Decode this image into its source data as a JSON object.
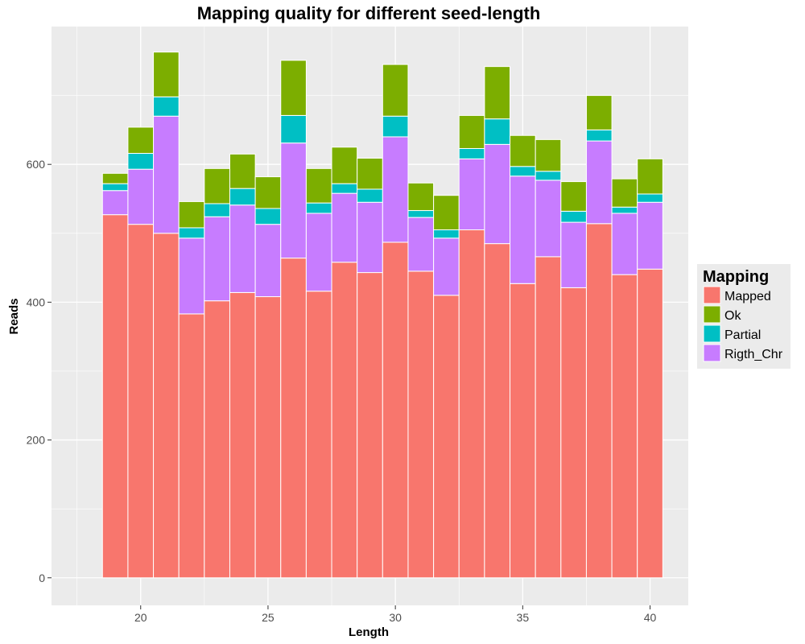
{
  "chart_data": {
    "type": "bar",
    "stacked": true,
    "title": "Mapping quality for different seed-length",
    "xlabel": "Length",
    "ylabel": "Reads",
    "x": [
      19,
      20,
      21,
      22,
      23,
      24,
      25,
      26,
      27,
      28,
      29,
      30,
      31,
      32,
      33,
      34,
      35,
      36,
      37,
      38,
      39,
      40
    ],
    "xlim": [
      16.5,
      41.5
    ],
    "ylim": [
      -40,
      800
    ],
    "xticks": [
      20,
      25,
      30,
      35,
      40
    ],
    "yticks": [
      0,
      200,
      400,
      600
    ],
    "grid": true,
    "legend": {
      "title": "Mapping",
      "position": "right"
    },
    "series": [
      {
        "name": "Mapped",
        "color": "#F8766D",
        "values": [
          527,
          513,
          500,
          383,
          402,
          414,
          408,
          464,
          416,
          458,
          443,
          487,
          445,
          410,
          505,
          485,
          427,
          466,
          421,
          514,
          440,
          448
        ]
      },
      {
        "name": "Rigth_Chr",
        "color": "#C77CFF",
        "values": [
          35,
          80,
          170,
          110,
          122,
          127,
          105,
          167,
          113,
          100,
          102,
          153,
          78,
          83,
          103,
          144,
          156,
          111,
          95,
          120,
          89,
          97
        ]
      },
      {
        "name": "Partial",
        "color": "#00BFC4",
        "values": [
          10,
          23,
          28,
          15,
          19,
          24,
          23,
          40,
          15,
          14,
          19,
          30,
          10,
          12,
          15,
          37,
          14,
          13,
          16,
          16,
          9,
          12
        ]
      },
      {
        "name": "Ok",
        "color": "#7CAE00",
        "values": [
          15,
          38,
          65,
          38,
          51,
          50,
          46,
          80,
          50,
          53,
          45,
          75,
          40,
          50,
          48,
          76,
          45,
          46,
          43,
          50,
          41,
          51
        ]
      }
    ],
    "legend_order": [
      "Mapped",
      "Ok",
      "Partial",
      "Rigth_Chr"
    ]
  },
  "colors": {
    "panel_background": "#EBEBEB",
    "grid_major": "#FFFFFF",
    "bar_outline": "#FFFFFF"
  }
}
